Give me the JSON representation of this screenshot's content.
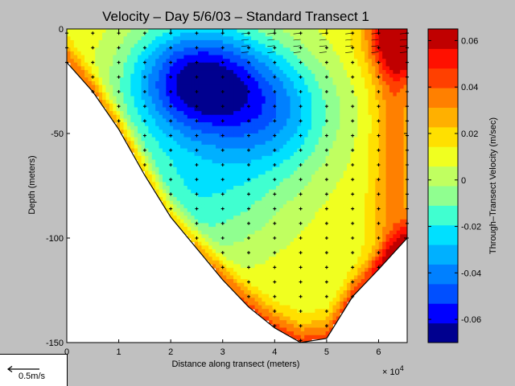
{
  "chart_data": {
    "type": "heatmap",
    "title": "Velocity – Day 5/6/03 – Standard Transect 1",
    "xlabel": "Distance along transect (meters)",
    "ylabel": "Depth (meters)",
    "x_exponent_label": "× 10",
    "x_exponent_power": "4",
    "x_scale": 10000,
    "xlim": [
      0,
      65500
    ],
    "ylim": [
      -150,
      0
    ],
    "x_ticks": [
      "0",
      "1",
      "2",
      "3",
      "4",
      "5",
      "6"
    ],
    "y_ticks": [
      "0",
      "-50",
      "-100",
      "-150"
    ],
    "colorbar": {
      "label": "Through–Transect Velocity (m/sec)",
      "range": [
        -0.07,
        0.065
      ],
      "ticks": [
        "0.06",
        "0.04",
        "0.02",
        "0",
        "-0.02",
        "-0.04",
        "-0.06"
      ],
      "colors": [
        "#00008f",
        "#0000ff",
        "#004fff",
        "#0080ff",
        "#00b0ff",
        "#00e0ff",
        "#40ffd0",
        "#90ff90",
        "#c0ff60",
        "#f0ff20",
        "#ffe000",
        "#ffb000",
        "#ff8000",
        "#ff4000",
        "#ff1000",
        "#c00000"
      ]
    },
    "bottom_profile": [
      [
        0,
        -16
      ],
      [
        5000,
        -30
      ],
      [
        10000,
        -48
      ],
      [
        15000,
        -70
      ],
      [
        20000,
        -90
      ],
      [
        25000,
        -105
      ],
      [
        30000,
        -120
      ],
      [
        35000,
        -133
      ],
      [
        40000,
        -143
      ],
      [
        45000,
        -150
      ],
      [
        50000,
        -148
      ],
      [
        55000,
        -128
      ],
      [
        60000,
        -115
      ],
      [
        65500,
        -100
      ]
    ],
    "stations": [
      [
        0,
        -16
      ],
      [
        5000,
        -30
      ],
      [
        10000,
        -48
      ],
      [
        15000,
        -70
      ],
      [
        20000,
        -90
      ],
      [
        25000,
        -105
      ],
      [
        30000,
        -120
      ],
      [
        35000,
        -133
      ],
      [
        40000,
        -143
      ],
      [
        45000,
        -150
      ],
      [
        50000,
        -148
      ],
      [
        55000,
        -128
      ],
      [
        60000,
        -115
      ],
      [
        65500,
        -100
      ]
    ],
    "velocity_features": [
      {
        "x": 25000,
        "y": -25,
        "v": -0.065
      },
      {
        "x": 25000,
        "y": -80,
        "v": -0.028
      },
      {
        "x": 40000,
        "y": -40,
        "v": -0.04
      },
      {
        "x": 65000,
        "y": -3,
        "v": 0.06
      }
    ]
  },
  "scale_arrow": {
    "label": "0.5m/s"
  }
}
